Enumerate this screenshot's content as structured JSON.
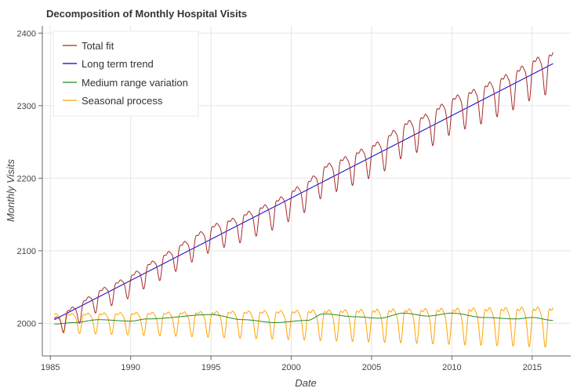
{
  "chart_data": {
    "type": "line",
    "title": "Decomposition of Monthly Hospital Visits",
    "xlabel": "Date",
    "ylabel": "Monthly Visits",
    "xlim": [
      1984.5,
      2017.4
    ],
    "ylim": [
      1955,
      2410
    ],
    "x_ticks": [
      1985,
      1990,
      1995,
      2000,
      2005,
      2010,
      2015
    ],
    "y_ticks": [
      2000,
      2100,
      2200,
      2300,
      2400
    ],
    "x_start": 1985.25,
    "x_end": 2016.3,
    "grid": true,
    "legend_position": "top-left",
    "series": [
      {
        "name": "Total fit",
        "color": "#a52a2a",
        "trend": [
          2005,
          2358
        ],
        "medium": [
          [
            1985.2,
            1999
          ],
          [
            1986.5,
            2001
          ],
          [
            1988,
            2005
          ],
          [
            1990,
            2003
          ],
          [
            1991,
            2006
          ],
          [
            1995,
            2012
          ],
          [
            1997,
            2005
          ],
          [
            1999,
            2001
          ],
          [
            2001,
            2004
          ],
          [
            2002,
            2013
          ],
          [
            2004,
            2009
          ],
          [
            2005.5,
            2007
          ],
          [
            2007,
            2014
          ],
          [
            2008.5,
            2010
          ],
          [
            2010,
            2014
          ],
          [
            2012,
            2008
          ],
          [
            2014,
            2006
          ],
          [
            2015,
            2008
          ],
          [
            2016.3,
            2004
          ]
        ],
        "seasonal_amplitude": [
          18,
          38
        ],
        "seasonal_period_years": 1
      },
      {
        "name": "Long term trend",
        "color": "#0000cd",
        "values": [
          2005,
          2358
        ]
      },
      {
        "name": "Medium range variation",
        "color": "#228b22",
        "values": [
          [
            1985.2,
            1999
          ],
          [
            1986.5,
            2001
          ],
          [
            1988,
            2005
          ],
          [
            1990,
            2003
          ],
          [
            1991,
            2006
          ],
          [
            1995,
            2012
          ],
          [
            1997,
            2005
          ],
          [
            1999,
            2001
          ],
          [
            2001,
            2004
          ],
          [
            2002,
            2013
          ],
          [
            2004,
            2009
          ],
          [
            2005.5,
            2007
          ],
          [
            2007,
            2014
          ],
          [
            2008.5,
            2010
          ],
          [
            2010,
            2014
          ],
          [
            2012,
            2008
          ],
          [
            2014,
            2006
          ],
          [
            2015,
            2008
          ],
          [
            2016.3,
            2004
          ]
        ]
      },
      {
        "name": "Seasonal process",
        "color": "#ffa500",
        "center": 2005,
        "amplitude": [
          18,
          38
        ],
        "period_years": 1
      }
    ]
  }
}
